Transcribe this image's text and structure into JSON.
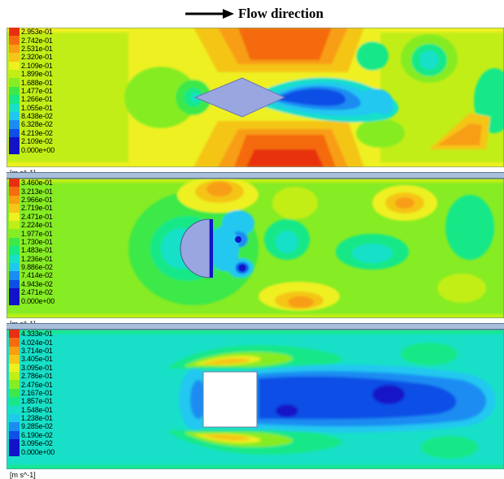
{
  "header": {
    "flow_label": "Flow direction"
  },
  "colors": {
    "scale": [
      "#1212c8",
      "#0f4fe6",
      "#1a8cf2",
      "#20c8f0",
      "#18e0c8",
      "#18e888",
      "#3ee84a",
      "#86ec24",
      "#c2ee18",
      "#eef020",
      "#f5c518",
      "#f89e12",
      "#f46b10",
      "#e83010"
    ]
  },
  "panels": [
    {
      "id": "diamond",
      "unit": "[m s^-1]",
      "legend": [
        "2.953e-01",
        "2.742e-01",
        "2.531e-01",
        "2.320e-01",
        "2.109e-01",
        "1.899e-01",
        "1.688e-01",
        "1.477e-01",
        "1.266e-01",
        "1.055e-01",
        "8.438e-02",
        "6.328e-02",
        "4.219e-02",
        "2.109e-02",
        "0.000e+00"
      ]
    },
    {
      "id": "semicircle",
      "unit": "[m s^-1]",
      "legend": [
        "3.460e-01",
        "3.213e-01",
        "2.966e-01",
        "2.719e-01",
        "2.471e-01",
        "2.224e-01",
        "1.977e-01",
        "1.730e-01",
        "1.483e-01",
        "1.236e-01",
        "9.886e-02",
        "7.414e-02",
        "4.943e-02",
        "2.471e-02",
        "0.000e+00"
      ]
    },
    {
      "id": "square",
      "unit": "[m s^-1]",
      "legend": [
        "4.333e-01",
        "4.024e-01",
        "3.714e-01",
        "3.405e-01",
        "3.095e-01",
        "2.786e-01",
        "2.476e-01",
        "2.167e-01",
        "1.857e-01",
        "1.548e-01",
        "1.238e-01",
        "9.285e-02",
        "6.190e-02",
        "3.095e-02",
        "0.000e+00"
      ]
    }
  ]
}
